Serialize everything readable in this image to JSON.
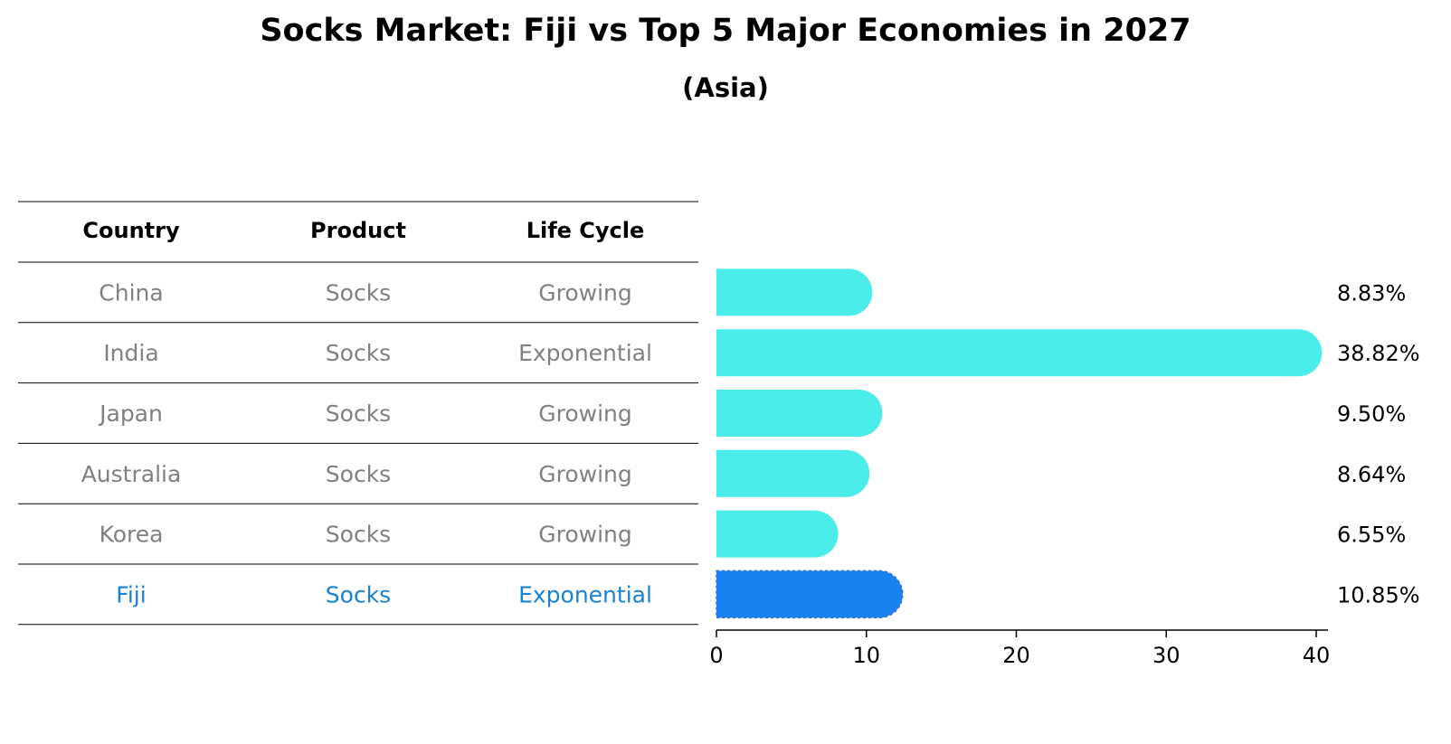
{
  "title": "Socks Market: Fiji vs Top 5 Major Economies in 2027",
  "subtitle": "(Asia)",
  "table": {
    "headers": [
      "Country",
      "Product",
      "Life Cycle"
    ],
    "rows": [
      {
        "country": "China",
        "product": "Socks",
        "life_cycle": "Growing",
        "highlight": false
      },
      {
        "country": "India",
        "product": "Socks",
        "life_cycle": "Exponential",
        "highlight": false
      },
      {
        "country": "Japan",
        "product": "Socks",
        "life_cycle": "Growing",
        "highlight": false
      },
      {
        "country": "Australia",
        "product": "Socks",
        "life_cycle": "Growing",
        "highlight": false
      },
      {
        "country": "Korea",
        "product": "Socks",
        "life_cycle": "Growing",
        "highlight": false
      },
      {
        "country": "Fiji",
        "product": "Socks",
        "life_cycle": "Exponential",
        "highlight": true
      }
    ]
  },
  "colors": {
    "bar": "#4BEDEA",
    "highlight_bar": "#1A82F0",
    "text_muted": "#808080",
    "text_highlight": "#1A82D6"
  },
  "chart_data": {
    "type": "bar",
    "orientation": "horizontal",
    "categories": [
      "China",
      "India",
      "Japan",
      "Australia",
      "Korea",
      "Fiji"
    ],
    "values": [
      8.83,
      38.82,
      9.5,
      8.64,
      6.55,
      10.85
    ],
    "value_labels": [
      "8.83%",
      "38.82%",
      "9.50%",
      "8.64%",
      "6.55%",
      "10.85%"
    ],
    "highlight_category": "Fiji",
    "xlim": [
      0,
      40
    ],
    "xticks": [
      0,
      10,
      20,
      30,
      40
    ],
    "xtick_labels": [
      "0",
      "10",
      "20",
      "30",
      "40"
    ],
    "grid": false
  }
}
